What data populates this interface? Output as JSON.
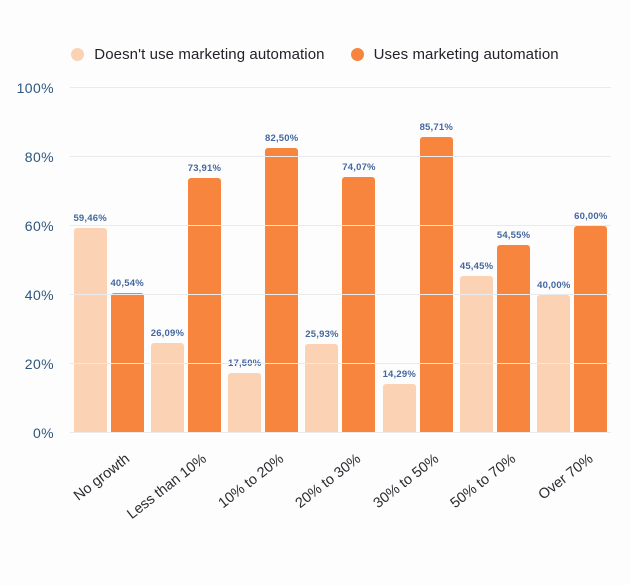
{
  "chart_data": {
    "type": "bar",
    "title": "",
    "xlabel": "",
    "ylabel": "",
    "ylim": [
      0,
      100
    ],
    "grid": true,
    "legend_position": "top",
    "yticks": [
      "0%",
      "20%",
      "40%",
      "60%",
      "80%",
      "100%"
    ],
    "ytick_values": [
      0,
      20,
      40,
      60,
      80,
      100
    ],
    "categories": [
      "No growth",
      "Less than 10%",
      "10% to 20%",
      "20% to 30%",
      "30% to 50%",
      "50% to 70%",
      "Over 70%"
    ],
    "series": [
      {
        "name": "Doesn't use marketing automation",
        "color": "#FBD3B4",
        "values": [
          59.46,
          26.09,
          17.5,
          25.93,
          14.29,
          45.45,
          40.0
        ],
        "labels": [
          "59,46%",
          "26,09%",
          "17,50%",
          "25,93%",
          "14,29%",
          "45,45%",
          "40,00%"
        ]
      },
      {
        "name": "Uses marketing automation",
        "color": "#F8853E",
        "values": [
          40.54,
          73.91,
          82.5,
          74.07,
          85.71,
          54.55,
          60.0
        ],
        "labels": [
          "40,54%",
          "73,91%",
          "82,50%",
          "74,07%",
          "85,71%",
          "54,55%",
          "60,00%"
        ]
      }
    ],
    "colors": {
      "background": "#fdfdfd",
      "gridline": "#E8EAEE",
      "data_label": "#44679F",
      "y_tick_label": "#2E567E",
      "x_axis_label": "#2B2B30",
      "legend_text": "#22232B"
    }
  }
}
